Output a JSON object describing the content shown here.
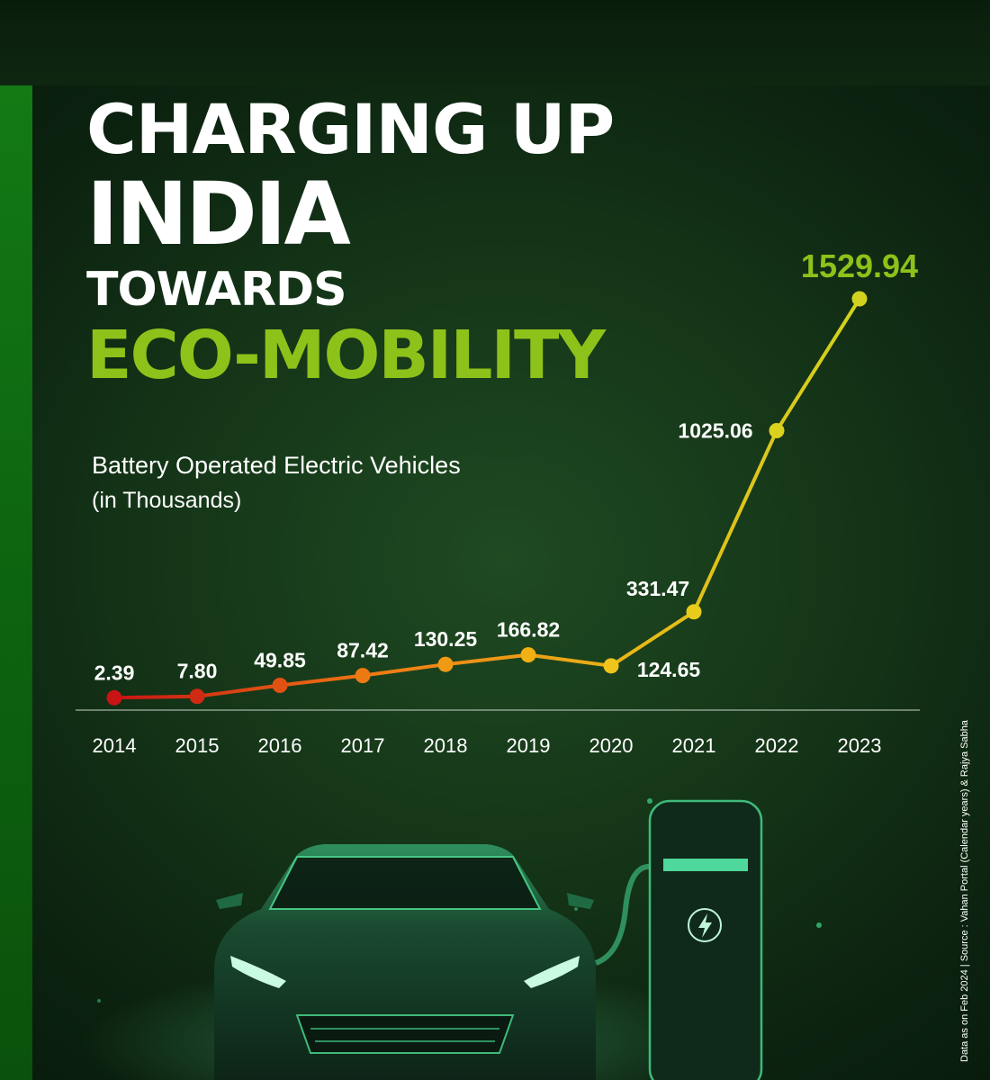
{
  "headline": {
    "line1": "CHARGING UP",
    "line2": "INDIA",
    "line3": "TOWARDS",
    "line4": "ECO-MOBILITY"
  },
  "colors": {
    "accent": "#8dc21a",
    "line_start": "#c81414",
    "line_mid": "#f07a14",
    "line_end": "#d2d21e"
  },
  "chart_data": {
    "type": "line",
    "title": "Battery Operated Electric Vehicles",
    "unit": "(in Thousands)",
    "xlabel": "",
    "ylabel": "",
    "categories": [
      "2014",
      "2015",
      "2016",
      "2017",
      "2018",
      "2019",
      "2020",
      "2021",
      "2022",
      "2023"
    ],
    "values": [
      2.39,
      7.8,
      49.85,
      87.42,
      130.25,
      166.82,
      124.65,
      331.47,
      1025.06,
      1529.94
    ],
    "value_labels": [
      "2.39",
      "7.80",
      "49.85",
      "87.42",
      "130.25",
      "166.82",
      "124.65",
      "331.47",
      "1025.06",
      "1529.94"
    ],
    "ylim": [
      0,
      1600
    ]
  },
  "footnote": "Data as on Feb 2024  |  Source : Vahan Portal (Calendar years) & Rajya Sabha",
  "illustration": {
    "car_icon": "car-icon",
    "charger_icon": "ev-charger-icon",
    "bolt_icon": "lightning-bolt-icon"
  }
}
